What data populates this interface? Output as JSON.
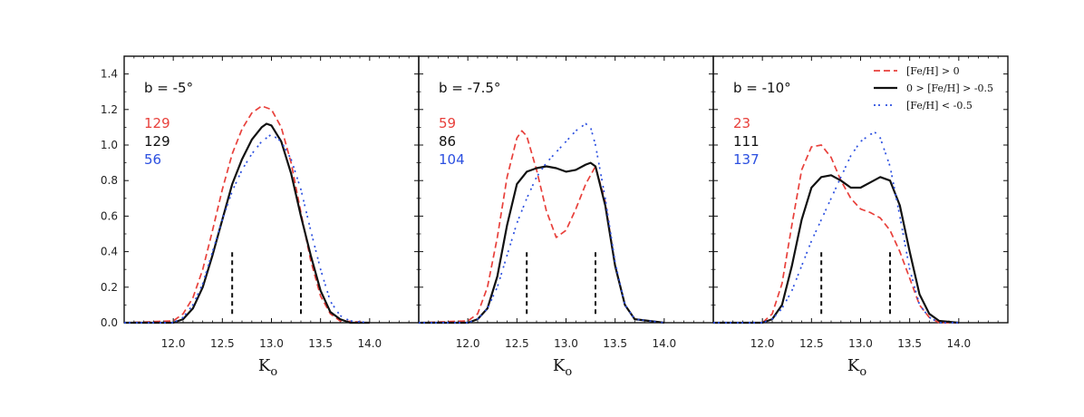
{
  "chart_data": [
    {
      "type": "line",
      "title": "b = -5°",
      "xlabel": "K",
      "xlabel_sub": "o",
      "xlim": [
        11.5,
        14.5
      ],
      "ylim": [
        0.0,
        1.5
      ],
      "xticks": [
        "12.0",
        "12.5",
        "13.0",
        "13.5",
        "14.0"
      ],
      "yticks": [
        "0.0",
        "0.2",
        "0.4",
        "0.6",
        "0.8",
        "1.0",
        "1.2",
        "1.4"
      ],
      "counts": [
        "129",
        "129",
        "56"
      ],
      "markers": [
        {
          "x": 12.6,
          "ymax": 0.41
        },
        {
          "x": 13.3,
          "ymax": 0.41
        }
      ],
      "series": [
        {
          "color": "#e8403b",
          "dash": "dashed",
          "x": [
            11.5,
            12.0,
            12.1,
            12.2,
            12.3,
            12.4,
            12.5,
            12.6,
            12.7,
            12.8,
            12.9,
            13.0,
            13.1,
            13.2,
            13.3,
            13.4,
            13.5,
            13.6,
            13.7,
            14.0
          ],
          "y": [
            0.0,
            0.01,
            0.05,
            0.14,
            0.3,
            0.52,
            0.75,
            0.95,
            1.09,
            1.18,
            1.22,
            1.2,
            1.1,
            0.9,
            0.62,
            0.35,
            0.15,
            0.05,
            0.01,
            0.0
          ]
        },
        {
          "color": "#111111",
          "dash": "solid",
          "x": [
            11.5,
            12.0,
            12.1,
            12.2,
            12.3,
            12.4,
            12.5,
            12.6,
            12.7,
            12.8,
            12.9,
            12.95,
            13.0,
            13.1,
            13.2,
            13.3,
            13.4,
            13.5,
            13.6,
            13.7,
            13.8,
            14.0
          ],
          "y": [
            0.0,
            0.0,
            0.02,
            0.08,
            0.2,
            0.38,
            0.58,
            0.78,
            0.92,
            1.03,
            1.1,
            1.12,
            1.11,
            1.02,
            0.84,
            0.6,
            0.38,
            0.18,
            0.06,
            0.02,
            0.0,
            0.0
          ]
        },
        {
          "color": "#2b4fe0",
          "dash": "dashdot",
          "x": [
            11.5,
            12.0,
            12.1,
            12.2,
            12.3,
            12.4,
            12.5,
            12.6,
            12.7,
            12.8,
            12.9,
            13.0,
            13.1,
            13.2,
            13.3,
            13.4,
            13.5,
            13.6,
            13.7,
            13.8,
            14.0
          ],
          "y": [
            0.0,
            0.0,
            0.03,
            0.1,
            0.22,
            0.4,
            0.58,
            0.74,
            0.86,
            0.95,
            1.02,
            1.06,
            1.02,
            0.92,
            0.75,
            0.52,
            0.3,
            0.12,
            0.04,
            0.01,
            0.0
          ]
        }
      ]
    },
    {
      "type": "line",
      "title": "b = -7.5°",
      "xlabel": "K",
      "xlabel_sub": "o",
      "xlim": [
        11.5,
        14.5
      ],
      "ylim": [
        0.0,
        1.5
      ],
      "xticks": [
        "12.0",
        "12.5",
        "13.0",
        "13.5",
        "14.0"
      ],
      "yticks": [],
      "counts": [
        "59",
        "86",
        "104"
      ],
      "markers": [
        {
          "x": 12.6,
          "ymax": 0.41
        },
        {
          "x": 13.3,
          "ymax": 0.41
        }
      ],
      "series": [
        {
          "color": "#e8403b",
          "dash": "dashed",
          "x": [
            11.5,
            12.0,
            12.1,
            12.2,
            12.3,
            12.4,
            12.5,
            12.55,
            12.6,
            12.7,
            12.8,
            12.9,
            13.0,
            13.1,
            13.2,
            13.3,
            13.4,
            13.5,
            13.6,
            13.7,
            14.0
          ],
          "y": [
            0.0,
            0.01,
            0.05,
            0.2,
            0.48,
            0.82,
            1.04,
            1.08,
            1.05,
            0.86,
            0.63,
            0.48,
            0.52,
            0.64,
            0.78,
            0.88,
            0.68,
            0.32,
            0.1,
            0.02,
            0.0
          ]
        },
        {
          "color": "#111111",
          "dash": "solid",
          "x": [
            11.5,
            12.0,
            12.1,
            12.2,
            12.3,
            12.4,
            12.5,
            12.6,
            12.7,
            12.8,
            12.9,
            13.0,
            13.1,
            13.2,
            13.25,
            13.3,
            13.4,
            13.5,
            13.6,
            13.7,
            14.0
          ],
          "y": [
            0.0,
            0.0,
            0.02,
            0.08,
            0.26,
            0.55,
            0.78,
            0.85,
            0.87,
            0.88,
            0.87,
            0.85,
            0.86,
            0.89,
            0.9,
            0.88,
            0.66,
            0.32,
            0.1,
            0.02,
            0.0
          ]
        },
        {
          "color": "#2b4fe0",
          "dash": "dashdot",
          "x": [
            11.5,
            12.0,
            12.1,
            12.2,
            12.3,
            12.4,
            12.5,
            12.6,
            12.7,
            12.8,
            12.9,
            13.0,
            13.1,
            13.2,
            13.25,
            13.3,
            13.4,
            13.5,
            13.6,
            13.7,
            14.0
          ],
          "y": [
            0.0,
            0.0,
            0.02,
            0.08,
            0.2,
            0.38,
            0.56,
            0.7,
            0.82,
            0.9,
            0.96,
            1.02,
            1.08,
            1.12,
            1.1,
            1.0,
            0.7,
            0.34,
            0.1,
            0.02,
            0.0
          ]
        }
      ]
    },
    {
      "type": "line",
      "title": "b = -10°",
      "xlabel": "K",
      "xlabel_sub": "o",
      "xlim": [
        11.5,
        14.5
      ],
      "ylim": [
        0.0,
        1.5
      ],
      "xticks": [
        "12.0",
        "12.5",
        "13.0",
        "13.5",
        "14.0"
      ],
      "yticks": [],
      "counts": [
        "23",
        "111",
        "137"
      ],
      "markers": [
        {
          "x": 12.6,
          "ymax": 0.41
        },
        {
          "x": 13.3,
          "ymax": 0.41
        }
      ],
      "legend": {
        "placement": "top-right",
        "entries": [
          {
            "label": "[Fe/H] > 0",
            "color": "#e8403b",
            "dash": "dashed"
          },
          {
            "label": "0 > [Fe/H] > -0.5",
            "color": "#111111",
            "dash": "solid"
          },
          {
            "label": "[Fe/H] < -0.5",
            "color": "#2b4fe0",
            "dash": "dashdot"
          }
        ]
      },
      "series": [
        {
          "color": "#e8403b",
          "dash": "dashed",
          "x": [
            11.5,
            12.0,
            12.1,
            12.2,
            12.3,
            12.4,
            12.5,
            12.6,
            12.7,
            12.8,
            12.9,
            13.0,
            13.1,
            13.2,
            13.3,
            13.4,
            13.5,
            13.6,
            13.7,
            13.8,
            14.0
          ],
          "y": [
            0.0,
            0.0,
            0.05,
            0.22,
            0.55,
            0.86,
            0.99,
            1.0,
            0.93,
            0.8,
            0.7,
            0.64,
            0.62,
            0.59,
            0.52,
            0.4,
            0.25,
            0.1,
            0.03,
            0.0,
            0.0
          ]
        },
        {
          "color": "#111111",
          "dash": "solid",
          "x": [
            11.5,
            12.0,
            12.1,
            12.2,
            12.3,
            12.4,
            12.5,
            12.6,
            12.7,
            12.8,
            12.9,
            13.0,
            13.1,
            13.2,
            13.3,
            13.4,
            13.5,
            13.6,
            13.7,
            13.8,
            14.0
          ],
          "y": [
            0.0,
            0.0,
            0.02,
            0.1,
            0.32,
            0.58,
            0.76,
            0.82,
            0.83,
            0.8,
            0.76,
            0.76,
            0.79,
            0.82,
            0.8,
            0.66,
            0.4,
            0.16,
            0.05,
            0.01,
            0.0
          ]
        },
        {
          "color": "#2b4fe0",
          "dash": "dashdot",
          "x": [
            11.5,
            12.0,
            12.1,
            12.2,
            12.3,
            12.4,
            12.5,
            12.6,
            12.7,
            12.8,
            12.9,
            13.0,
            13.1,
            13.15,
            13.2,
            13.3,
            13.4,
            13.5,
            13.6,
            13.7,
            13.8,
            14.0
          ],
          "y": [
            0.0,
            0.0,
            0.02,
            0.08,
            0.18,
            0.32,
            0.46,
            0.58,
            0.7,
            0.82,
            0.94,
            1.02,
            1.06,
            1.07,
            1.04,
            0.88,
            0.6,
            0.3,
            0.1,
            0.03,
            0.0,
            0.0
          ]
        }
      ]
    }
  ]
}
